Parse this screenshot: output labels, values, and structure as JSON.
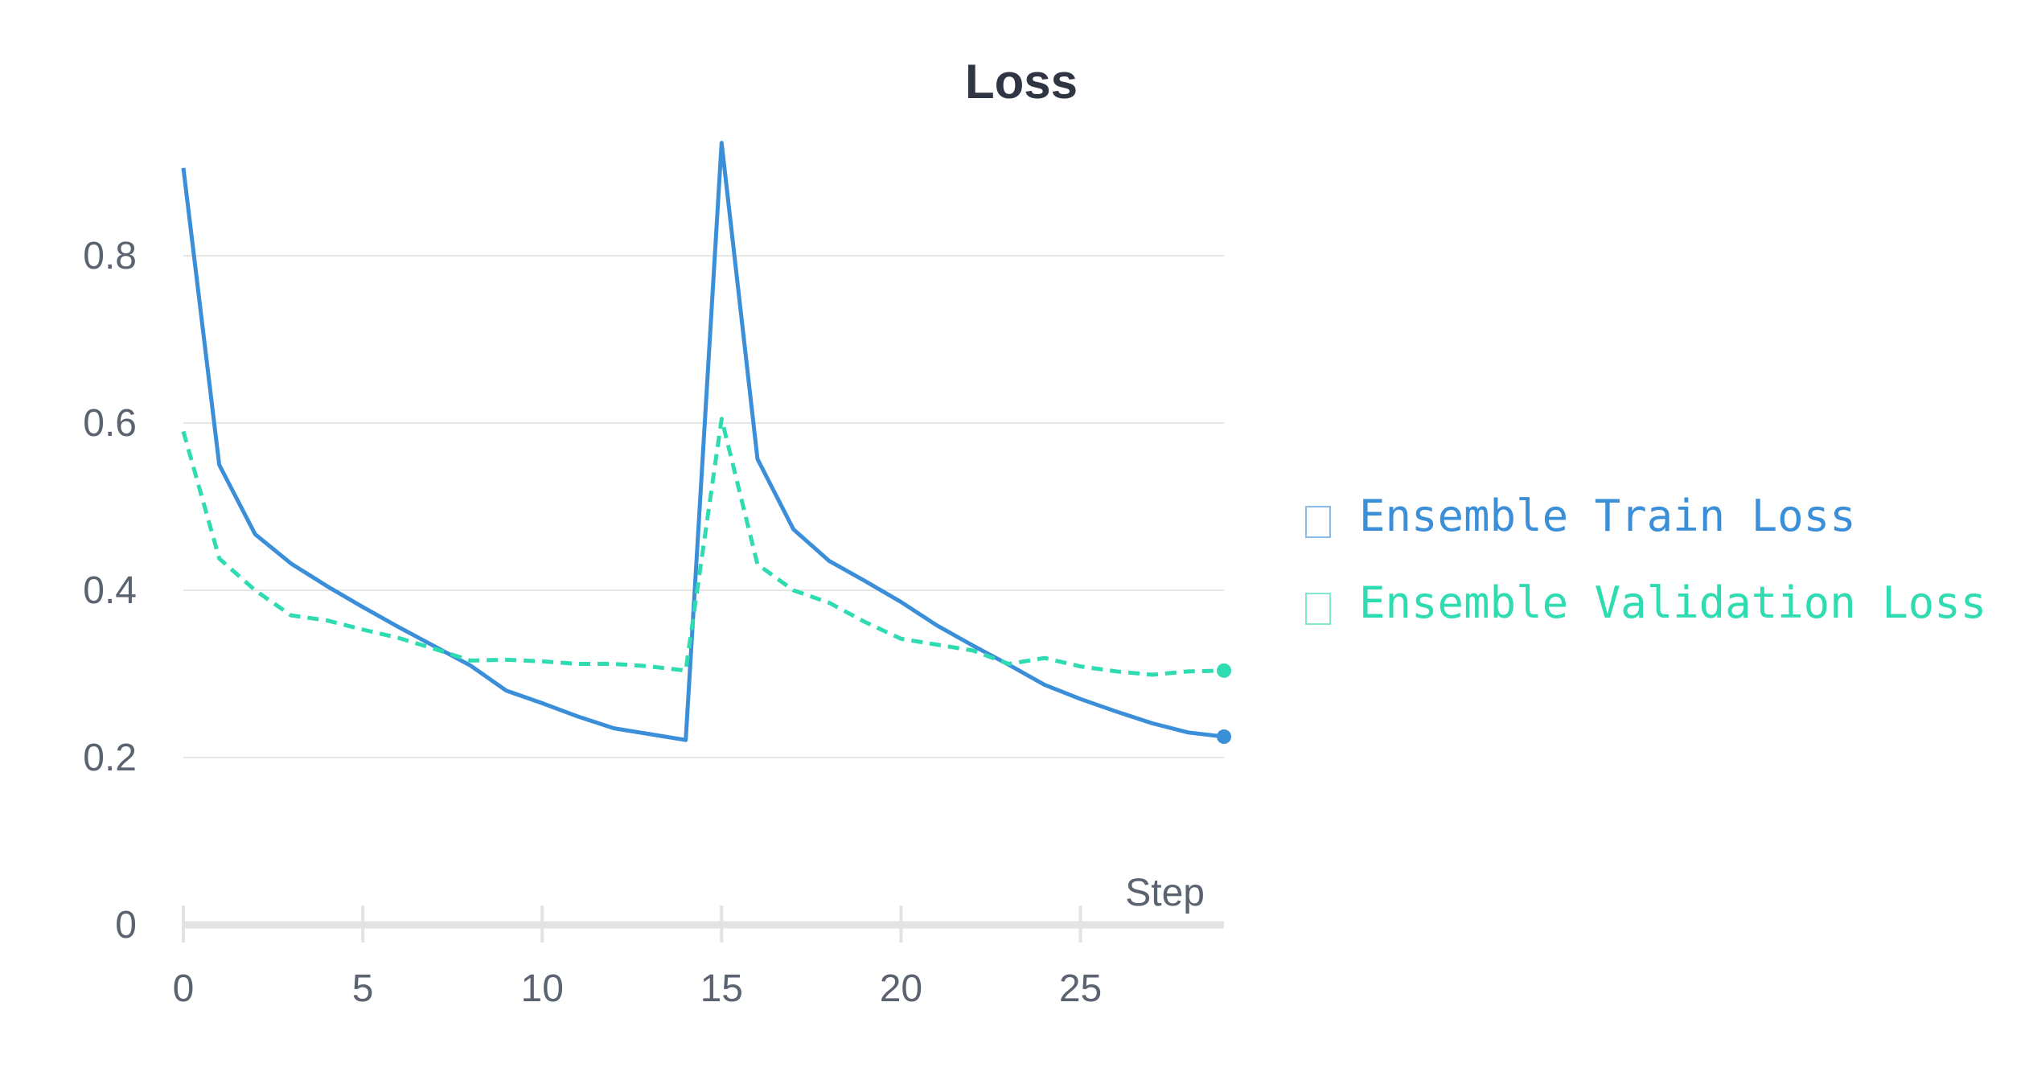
{
  "chart_data": {
    "type": "line",
    "title": "Loss",
    "xlabel": "Step",
    "ylabel": "",
    "xlim": [
      0,
      29
    ],
    "ylim": [
      0,
      0.95
    ],
    "x_ticks": [
      "0",
      "5",
      "10",
      "15",
      "20",
      "25"
    ],
    "x_tick_values": [
      0,
      5,
      10,
      15,
      20,
      25
    ],
    "y_ticks": [
      "0",
      "0.2",
      "0.4",
      "0.6",
      "0.8"
    ],
    "y_tick_values": [
      0,
      0.2,
      0.4,
      0.6,
      0.8
    ],
    "grid": true,
    "legend_position": "right",
    "x": [
      0,
      1,
      2,
      3,
      4,
      5,
      6,
      7,
      8,
      9,
      10,
      11,
      12,
      13,
      14,
      15,
      16,
      17,
      18,
      19,
      20,
      21,
      22,
      23,
      24,
      25,
      26,
      27,
      28,
      29
    ],
    "series": [
      {
        "name": "Ensemble Train Loss",
        "color": "#3b8fd9",
        "dash": "solid",
        "values": [
          0.905,
          0.55,
          0.467,
          0.432,
          0.405,
          0.38,
          0.356,
          0.333,
          0.31,
          0.28,
          0.265,
          0.249,
          0.235,
          0.228,
          0.221,
          0.935,
          0.557,
          0.473,
          0.435,
          0.411,
          0.386,
          0.358,
          0.334,
          0.311,
          0.287,
          0.27,
          0.255,
          0.241,
          0.23,
          0.225
        ]
      },
      {
        "name": "Ensemble Validation Loss",
        "color": "#2fdbb0",
        "dash": "dashed",
        "values": [
          0.59,
          0.438,
          0.4,
          0.37,
          0.364,
          0.353,
          0.343,
          0.33,
          0.316,
          0.317,
          0.315,
          0.312,
          0.312,
          0.309,
          0.304,
          0.605,
          0.431,
          0.4,
          0.385,
          0.362,
          0.342,
          0.335,
          0.328,
          0.312,
          0.319,
          0.309,
          0.303,
          0.299,
          0.303,
          0.304
        ]
      }
    ],
    "end_markers": true
  }
}
